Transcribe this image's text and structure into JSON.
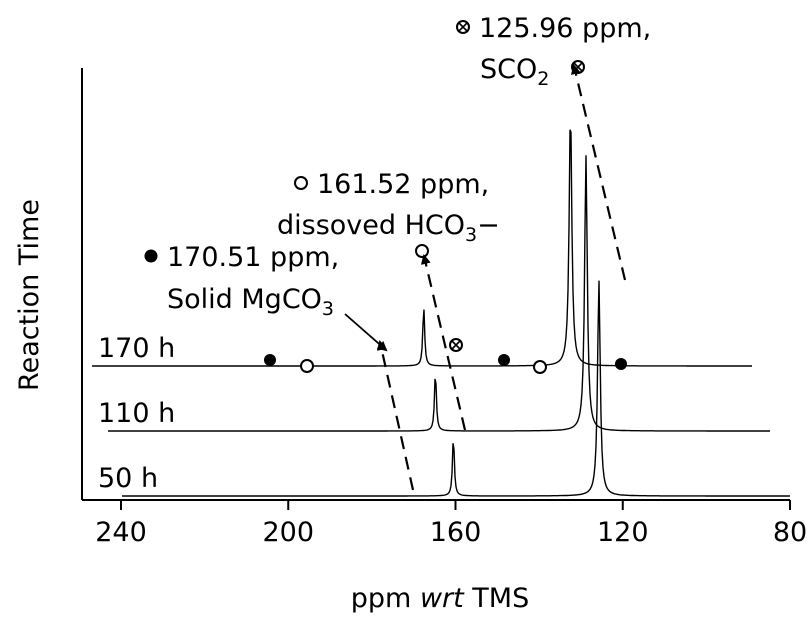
{
  "chart_data": {
    "type": "line",
    "title": "",
    "xlabel": {
      "prefix": "ppm ",
      "italic": "wrt",
      "suffix": " TMS"
    },
    "ylabel": "Reaction Time",
    "xlim": [
      240,
      80
    ],
    "x_reversed": true,
    "x_ticks": [
      240,
      200,
      160,
      120,
      80
    ],
    "x_tick_labels": [
      "240",
      "200",
      "160",
      "120",
      "80"
    ],
    "series": [
      {
        "name": "50 h",
        "peaks": [
          {
            "ppm": 160.5,
            "height": 1.0
          },
          {
            "ppm": 125.7,
            "height": 3.6
          }
        ]
      },
      {
        "name": "110 h",
        "peaks": [
          {
            "ppm": 164.8,
            "height": 1.0
          },
          {
            "ppm": 128.8,
            "height": 4.6
          }
        ]
      },
      {
        "name": "170 h",
        "peaks": [
          {
            "ppm": 167.6,
            "height": 1.0
          },
          {
            "ppm": 132.5,
            "height": 4.3
          }
        ]
      }
    ],
    "annotations": [
      {
        "marker": "filled-circle",
        "line1": "170.51 ppm,",
        "line2": "Solid MgCO",
        "line2_sub": "3",
        "line2_tail": ""
      },
      {
        "marker": "open-circle",
        "line1": "161.52 ppm,",
        "line2": "dissoved HCO",
        "line2_sub": "3",
        "line2_tail": "−"
      },
      {
        "marker": "crossed-circle",
        "line1": "125.96 ppm,",
        "line2": "SCO",
        "line2_sub": "2",
        "line2_tail": ""
      }
    ]
  }
}
